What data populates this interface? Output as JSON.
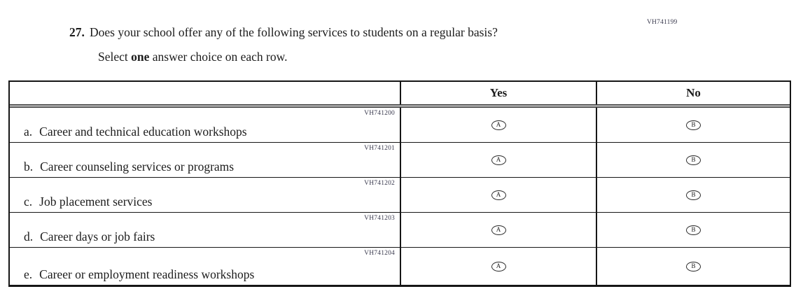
{
  "question": {
    "number": "27.",
    "text": "Does your school offer any of the following services to students on a regular basis?",
    "instruction": {
      "prefix": "Select ",
      "bold": "one",
      "suffix": " answer choice on each row."
    },
    "code": "VH741199"
  },
  "table": {
    "columns": [
      {
        "label": ""
      },
      {
        "label": "Yes"
      },
      {
        "label": "No"
      }
    ],
    "options": [
      "A",
      "B"
    ],
    "rows": [
      {
        "letter": "a.",
        "label": "Career and technical education workshops",
        "code": "VH741200"
      },
      {
        "letter": "b.",
        "label": "Career counseling services or programs",
        "code": "VH741201"
      },
      {
        "letter": "c.",
        "label": "Job placement services",
        "code": "VH741202"
      },
      {
        "letter": "d.",
        "label": "Career days or job fairs",
        "code": "VH741203"
      },
      {
        "letter": "e.",
        "label": "Career or employment readiness workshops",
        "code": "VH741204"
      }
    ]
  },
  "colors": {
    "text": "#1c1c1c",
    "border": "#161616",
    "code_text": "#3a3a4e",
    "background": "#ffffff"
  }
}
